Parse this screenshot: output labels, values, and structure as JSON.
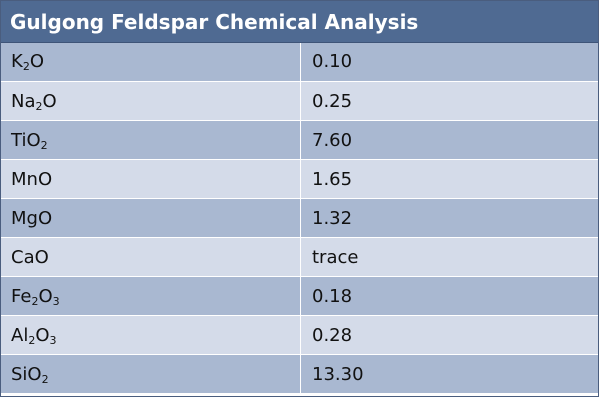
{
  "table": {
    "title": "Gulgong Feldspar Chemical Analysis",
    "rows": [
      {
        "name": [
          {
            "t": "K"
          },
          {
            "s": "2"
          },
          {
            "t": "O"
          }
        ],
        "value": "0.10"
      },
      {
        "name": [
          {
            "t": "Na"
          },
          {
            "s": "2"
          },
          {
            "t": "O"
          }
        ],
        "value": "0.25"
      },
      {
        "name": [
          {
            "t": "TiO"
          },
          {
            "s": "2"
          }
        ],
        "value": "7.60"
      },
      {
        "name": [
          {
            "t": "MnO"
          }
        ],
        "value": "1.65"
      },
      {
        "name": [
          {
            "t": "MgO"
          }
        ],
        "value": "1.32"
      },
      {
        "name": [
          {
            "t": "CaO"
          }
        ],
        "value": "trace"
      },
      {
        "name": [
          {
            "t": "Fe"
          },
          {
            "s": "2"
          },
          {
            "t": "O"
          },
          {
            "s": "3"
          }
        ],
        "value": "0.18"
      },
      {
        "name": [
          {
            "t": "Al"
          },
          {
            "s": "2"
          },
          {
            "t": "O"
          },
          {
            "s": "3"
          }
        ],
        "value": "0.28"
      },
      {
        "name": [
          {
            "t": "SiO"
          },
          {
            "s": "2"
          }
        ],
        "value": "13.30"
      }
    ]
  },
  "colors": {
    "header": "#4f6a92",
    "row_dark": "#a9b8d1",
    "row_light": "#d4dbe9"
  }
}
